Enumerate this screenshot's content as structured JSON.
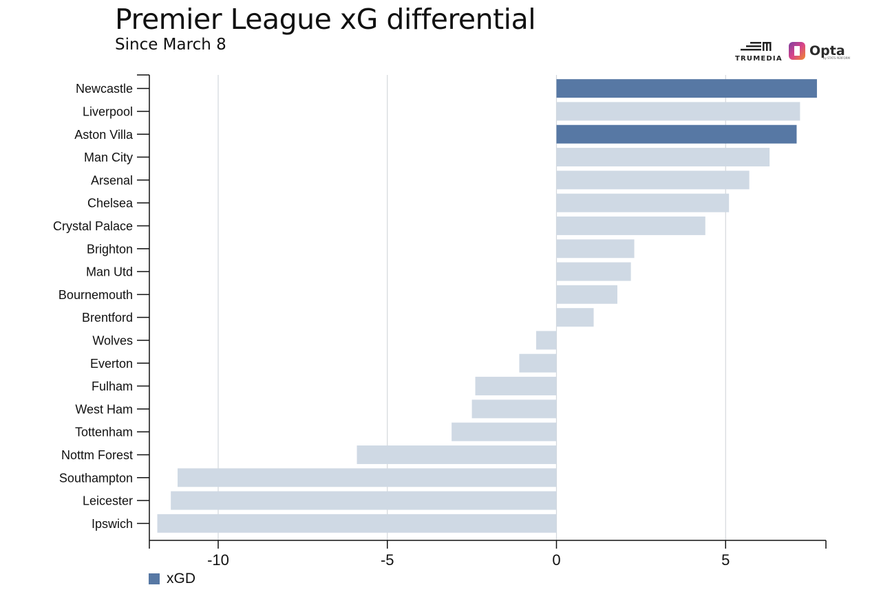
{
  "colors": {
    "highlight": "#5778a4",
    "default": "#cfd9e4",
    "grid": "#d3d7dc",
    "axis": "#111111"
  },
  "logos": {
    "trumedia": "TRUMEDIA",
    "opta": "Opta",
    "opta_sub": "by STATS PERFORM"
  },
  "chart_data": {
    "type": "bar",
    "orientation": "horizontal",
    "title": "Premier League xG differential",
    "subtitle": "Since March 8",
    "xlim": [
      -12,
      8
    ],
    "xticks": [
      -10,
      -5,
      0,
      5
    ],
    "grid": true,
    "legend": {
      "position": "bottom-left",
      "entries": [
        "xGD"
      ]
    },
    "categories": [
      "Newcastle",
      "Liverpool",
      "Aston Villa",
      "Man City",
      "Arsenal",
      "Chelsea",
      "Crystal Palace",
      "Brighton",
      "Man Utd",
      "Bournemouth",
      "Brentford",
      "Wolves",
      "Everton",
      "Fulham",
      "West Ham",
      "Tottenham",
      "Nottm Forest",
      "Southampton",
      "Leicester",
      "Ipswich"
    ],
    "series": [
      {
        "name": "xGD",
        "values": [
          7.7,
          7.2,
          7.1,
          6.3,
          5.7,
          5.1,
          4.4,
          2.3,
          2.2,
          1.8,
          1.1,
          -0.6,
          -1.1,
          -2.4,
          -2.5,
          -3.1,
          -5.9,
          -11.2,
          -11.4,
          -11.8
        ],
        "highlighted": [
          "Newcastle",
          "Aston Villa"
        ]
      }
    ]
  }
}
